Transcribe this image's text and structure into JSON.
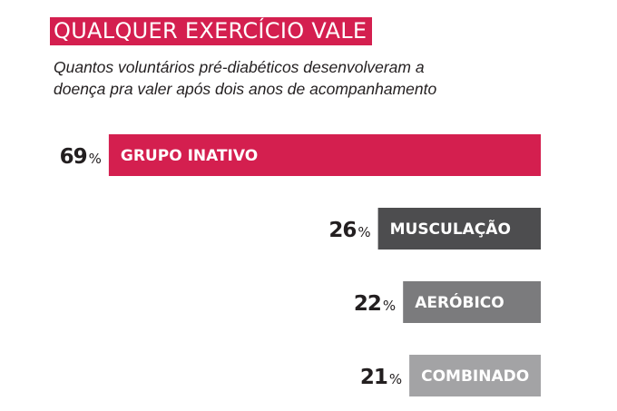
{
  "header": {
    "title": "QUALQUER EXERCÍCIO VALE",
    "subtitle_line1": "Quantos voluntários pré-diabéticos desenvolveram a",
    "subtitle_line2": "doença pra valer após dois anos de acompanhamento"
  },
  "colors": {
    "accent": "#d41f4f",
    "text": "#231f20"
  },
  "chart_data": {
    "type": "bar",
    "orientation": "horizontal",
    "title": "QUALQUER EXERCÍCIO VALE",
    "subtitle": "Quantos voluntários pré-diabéticos desenvolveram a doença pra valer após dois anos de acompanhamento",
    "bar_alignment": "right",
    "unit": "%",
    "categories": [
      "GRUPO INATIVO",
      "MUSCULAÇÃO",
      "AERÓBICO",
      "COMBINADO"
    ],
    "values": [
      69,
      26,
      22,
      21
    ],
    "colors": [
      "#d41f4f",
      "#4d4d4f",
      "#7b7b7d",
      "#a3a3a5"
    ],
    "grid": false,
    "legend": "none"
  }
}
